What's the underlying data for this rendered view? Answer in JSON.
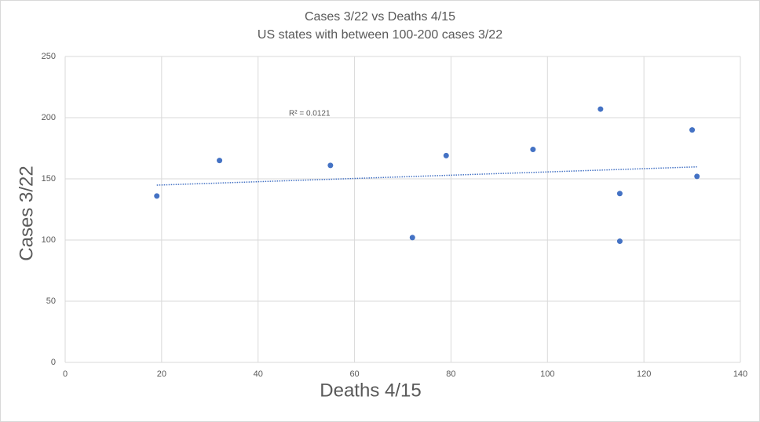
{
  "chart_data": {
    "type": "scatter",
    "title": "Cases 3/22 vs Deaths 4/15",
    "subtitle": "US states with between 100-200 cases 3/22",
    "x_label": "Deaths 4/15",
    "y_label": "Cases 3/22",
    "annotation": "R² = 0.0121",
    "trendline": "linear",
    "color": "#4472c4",
    "x": [
      19,
      32,
      55,
      72,
      79,
      97,
      111,
      115,
      115,
      130,
      131
    ],
    "values": [
      136,
      165,
      161,
      102,
      169,
      174,
      207,
      138,
      99,
      190,
      152
    ],
    "xlim": [
      0,
      140
    ],
    "xticks": [
      0,
      20,
      40,
      60,
      80,
      100,
      120,
      140
    ],
    "ylim": [
      0,
      250
    ],
    "yticks": [
      0,
      50,
      100,
      150,
      200,
      250
    ],
    "grid": true
  }
}
